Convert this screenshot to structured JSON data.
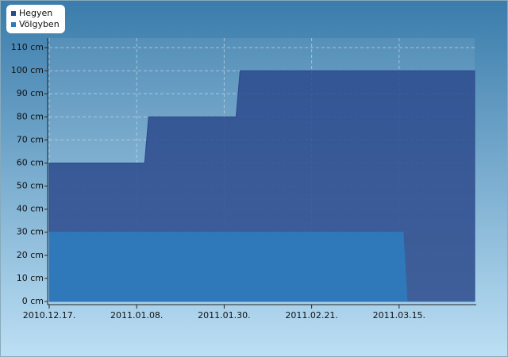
{
  "chart_data": {
    "type": "area",
    "x": [
      "2010-12-17",
      "2011-01-10",
      "2011-01-11",
      "2011-02-02",
      "2011-02-03",
      "2011-03-16",
      "2011-03-17",
      "2011-04-03"
    ],
    "series": [
      {
        "name": "Hegyen",
        "color": "#2b4a8c",
        "values": [
          60,
          60,
          80,
          80,
          100,
          100,
          100,
          100
        ]
      },
      {
        "name": "Völgyben",
        "color": "#2e7abd",
        "values": [
          30,
          30,
          30,
          30,
          30,
          30,
          0,
          0
        ]
      }
    ],
    "xlim": [
      "2010-12-17",
      "2011-04-03"
    ],
    "xticks": [
      {
        "value": "2010-12-17",
        "label": "2010.12.17."
      },
      {
        "value": "2011-01-08",
        "label": "2011.01.08."
      },
      {
        "value": "2011-01-30",
        "label": "2011.01.30."
      },
      {
        "value": "2011-02-21",
        "label": "2011.02.21."
      },
      {
        "value": "2011-03-15",
        "label": "2011.03.15."
      }
    ],
    "ylim": [
      0,
      110
    ],
    "yticks": [
      {
        "value": 0,
        "label": "0 cm"
      },
      {
        "value": 10,
        "label": "10 cm"
      },
      {
        "value": 20,
        "label": "20 cm"
      },
      {
        "value": 30,
        "label": "30 cm"
      },
      {
        "value": 40,
        "label": "40 cm"
      },
      {
        "value": 50,
        "label": "50 cm"
      },
      {
        "value": 60,
        "label": "60 cm"
      },
      {
        "value": 70,
        "label": "70 cm"
      },
      {
        "value": 80,
        "label": "80 cm"
      },
      {
        "value": 90,
        "label": "90 cm"
      },
      {
        "value": 100,
        "label": "100 cm"
      },
      {
        "value": 110,
        "label": "110 cm"
      }
    ],
    "grid": true,
    "legend": "top-left"
  }
}
